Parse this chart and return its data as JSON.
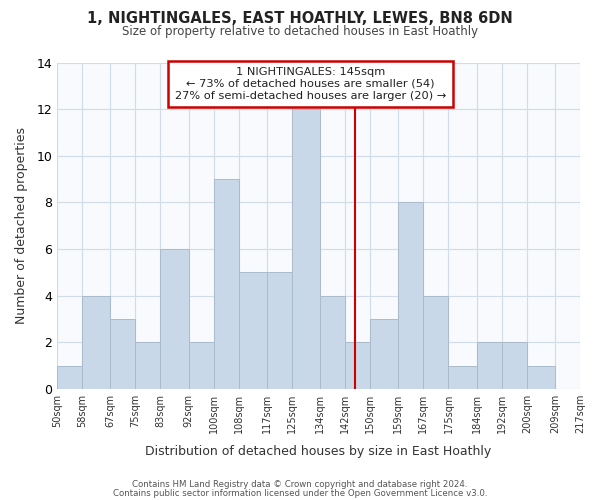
{
  "title": "1, NIGHTINGALES, EAST HOATHLY, LEWES, BN8 6DN",
  "subtitle": "Size of property relative to detached houses in East Hoathly",
  "xlabel": "Distribution of detached houses by size in East Hoathly",
  "ylabel": "Number of detached properties",
  "bin_labels": [
    "50sqm",
    "58sqm",
    "67sqm",
    "75sqm",
    "83sqm",
    "92sqm",
    "100sqm",
    "108sqm",
    "117sqm",
    "125sqm",
    "134sqm",
    "142sqm",
    "150sqm",
    "159sqm",
    "167sqm",
    "175sqm",
    "184sqm",
    "192sqm",
    "200sqm",
    "209sqm",
    "217sqm"
  ],
  "bin_edges": [
    50,
    58,
    67,
    75,
    83,
    92,
    100,
    108,
    117,
    125,
    134,
    142,
    150,
    159,
    167,
    175,
    184,
    192,
    200,
    209,
    217
  ],
  "bar_heights": [
    1,
    4,
    3,
    2,
    6,
    2,
    9,
    5,
    5,
    12,
    4,
    2,
    3,
    8,
    4,
    1,
    2,
    2,
    1,
    0
  ],
  "bar_color": "#c8d8e8",
  "bar_edge_color": "#aabbcc",
  "grid_color": "#d0dce8",
  "vline_x": 145,
  "vline_color": "#cc0000",
  "ylim": [
    0,
    14
  ],
  "yticks": [
    0,
    2,
    4,
    6,
    8,
    10,
    12,
    14
  ],
  "annotation_title": "1 NIGHTINGALES: 145sqm",
  "annotation_line1": "← 73% of detached houses are smaller (54)",
  "annotation_line2": "27% of semi-detached houses are larger (20) →",
  "annotation_box_edge": "#cc0000",
  "footnote1": "Contains HM Land Registry data © Crown copyright and database right 2024.",
  "footnote2": "Contains public sector information licensed under the Open Government Licence v3.0."
}
